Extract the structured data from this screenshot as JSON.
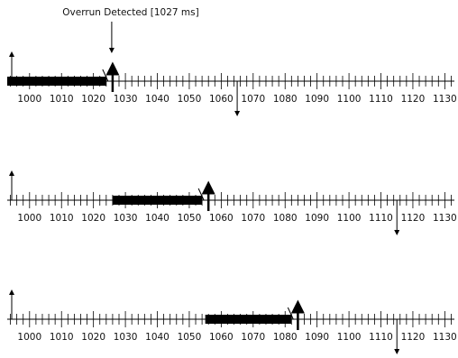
{
  "annotation": {
    "text": "Overrun Detected [1027 ms]"
  },
  "axis": {
    "min": 993,
    "max": 1133,
    "minor_step": 2,
    "labels": [
      "1000",
      "1010",
      "1020",
      "1030",
      "1040",
      "1050",
      "1060",
      "1070",
      "1080",
      "1090",
      "1100",
      "1110",
      "1120",
      "1130"
    ]
  },
  "timelines": [
    {
      "task_start": 993,
      "task_end": 1024,
      "deadline": 1026,
      "release": 993,
      "next_release": 1065,
      "overrun_marker": true
    },
    {
      "task_start": 1026,
      "task_end": 1054,
      "deadline": 1056,
      "release": 993,
      "next_release": 1115,
      "overrun_marker": false
    },
    {
      "task_start": 1055,
      "task_end": 1082,
      "deadline": 1084,
      "release": 993,
      "next_release": 1115,
      "overrun_marker": false
    }
  ]
}
